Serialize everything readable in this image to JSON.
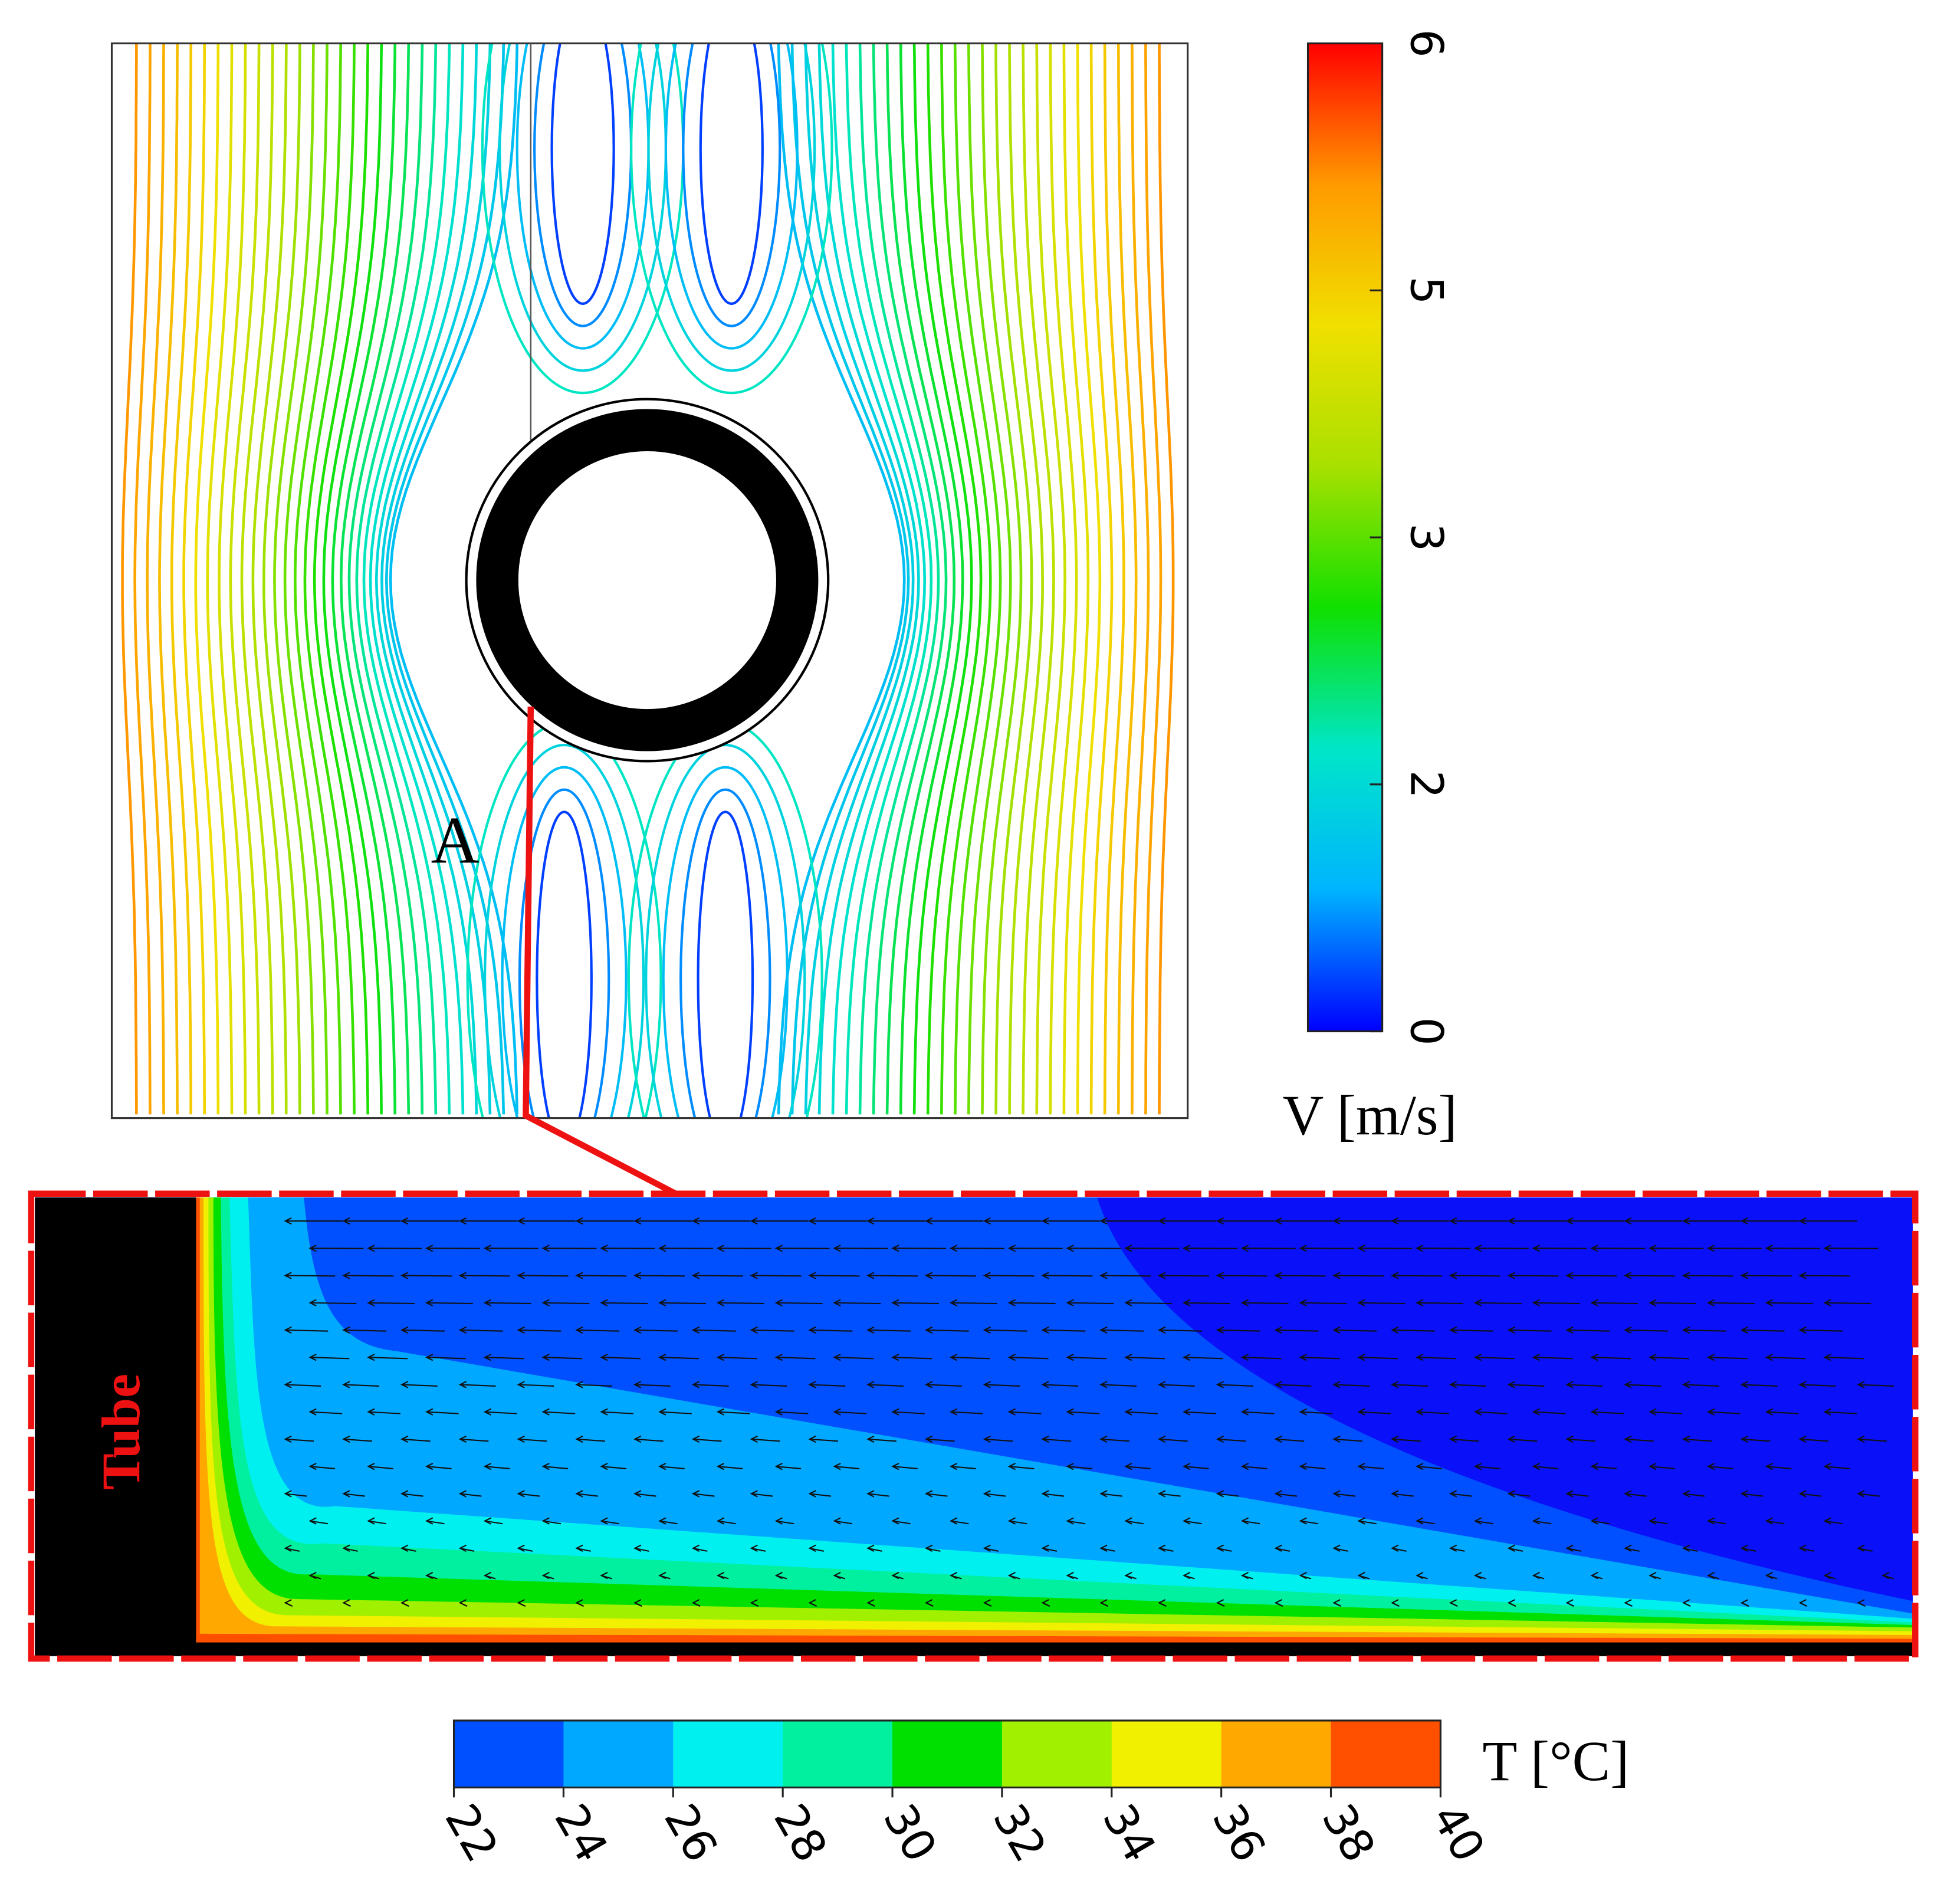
{
  "top_panel": {
    "point_label": "A"
  },
  "velocity_colorbar": {
    "label": "V [m/s]",
    "ticks": [
      0,
      2,
      3,
      5,
      6
    ],
    "colors": [
      "#0000ff",
      "#00b4ff",
      "#00e6c8",
      "#10e000",
      "#a8e000",
      "#f0e000",
      "#ff9a00",
      "#ff0000"
    ]
  },
  "bottom_panel": {
    "wall_label": "Tube"
  },
  "temperature_colorbar": {
    "label": "T [°C]",
    "ticks": [
      22,
      24,
      26,
      28,
      30,
      32,
      34,
      36,
      38,
      40
    ],
    "colors": [
      "#0050ff",
      "#00a8ff",
      "#00f0f0",
      "#00f0a0",
      "#00e000",
      "#a0f000",
      "#f0f000",
      "#ffa800",
      "#ff5000"
    ]
  }
}
